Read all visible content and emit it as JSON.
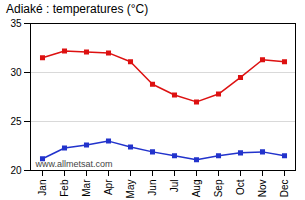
{
  "chart_data": {
    "type": "line",
    "title": "Adiaké : temperatures (°C)",
    "categories": [
      "Jan",
      "Feb",
      "Mar",
      "Apr",
      "May",
      "Jun",
      "Jul",
      "Aug",
      "Sep",
      "Oct",
      "Nov",
      "Dec"
    ],
    "series": [
      {
        "color": "#dd1111",
        "marker": "square",
        "line_style": "solid",
        "values": [
          31.5,
          32.2,
          32.1,
          32.0,
          31.1,
          28.8,
          27.7,
          27.0,
          27.8,
          29.5,
          31.3,
          31.1
        ]
      },
      {
        "color": "#2233cc",
        "marker": "square",
        "line_style": "solid",
        "values": [
          21.2,
          22.3,
          22.6,
          23.0,
          22.4,
          21.9,
          21.5,
          21.1,
          21.5,
          21.8,
          21.9,
          21.5
        ]
      }
    ],
    "ylim": [
      20,
      35
    ],
    "yticks": [
      20,
      25,
      30,
      35
    ],
    "grid": "y",
    "annotations": [
      "www.allmetsat.com"
    ]
  }
}
